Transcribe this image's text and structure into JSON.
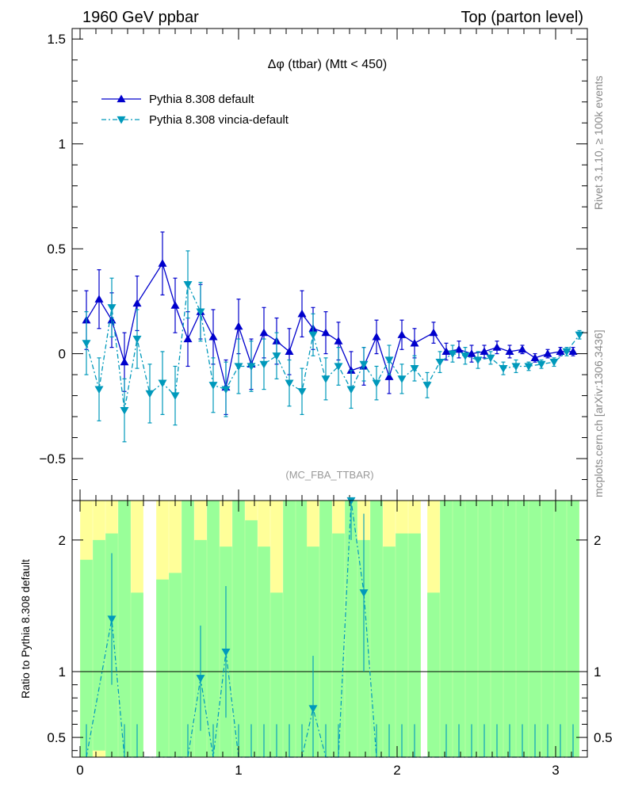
{
  "header": {
    "left": "1960 GeV ppbar",
    "right": "Top (parton level)"
  },
  "side_labels": {
    "rivet": "Rivet 3.1.10, ≥ 100k events",
    "mcplots": "mcplots.cern.ch [arXiv:1306.3436]"
  },
  "chart_data": [
    {
      "type": "line",
      "panel": "main",
      "title": "Δφ (ttbar) (Mtt < 450)",
      "watermark": "(MC_FBA_TTBAR)",
      "xlabel": "",
      "ylabel": "",
      "xlim": [
        -0.05,
        3.2
      ],
      "ylim": [
        -0.7,
        1.55
      ],
      "x_ticks": [
        "0",
        "1",
        "2",
        "3"
      ],
      "y_ticks": [
        "−0.5",
        "0",
        "0.5",
        "1",
        "1.5"
      ],
      "y_tick_values": [
        -0.5,
        0,
        0.5,
        1,
        1.5
      ],
      "legend_position": "top-left",
      "series": [
        {
          "name": "Pythia 8.308 default",
          "color": "#0000cc",
          "style": "solid",
          "marker": "triangle-up",
          "x": [
            0.04,
            0.12,
            0.2,
            0.28,
            0.36,
            0.52,
            0.6,
            0.68,
            0.76,
            0.84,
            0.92,
            1.0,
            1.08,
            1.16,
            1.24,
            1.32,
            1.4,
            1.47,
            1.55,
            1.63,
            1.71,
            1.79,
            1.87,
            1.95,
            2.03,
            2.11,
            2.23,
            2.31,
            2.39,
            2.47,
            2.55,
            2.63,
            2.71,
            2.79,
            2.87,
            2.95,
            3.03,
            3.11
          ],
          "y": [
            0.16,
            0.26,
            0.16,
            -0.04,
            0.24,
            0.43,
            0.23,
            0.07,
            0.2,
            0.08,
            -0.16,
            0.13,
            -0.05,
            0.1,
            0.06,
            0.01,
            0.19,
            0.12,
            0.1,
            0.06,
            -0.08,
            -0.06,
            0.08,
            -0.11,
            0.09,
            0.05,
            0.1,
            0.01,
            0.02,
            0.0,
            0.01,
            0.03,
            0.01,
            0.02,
            -0.02,
            0.0,
            0.01,
            0.01
          ],
          "err": [
            0.14,
            0.14,
            0.13,
            0.14,
            0.13,
            0.15,
            0.13,
            0.13,
            0.13,
            0.13,
            0.13,
            0.13,
            0.12,
            0.12,
            0.11,
            0.11,
            0.11,
            0.1,
            0.1,
            0.09,
            0.09,
            0.09,
            0.08,
            0.08,
            0.07,
            0.07,
            0.05,
            0.04,
            0.04,
            0.04,
            0.03,
            0.03,
            0.03,
            0.02,
            0.02,
            0.02,
            0.02,
            0.02
          ]
        },
        {
          "name": "Pythia 8.308 vincia-default",
          "color": "#0099bb",
          "style": "dashdot",
          "marker": "triangle-down",
          "x": [
            0.04,
            0.12,
            0.2,
            0.28,
            0.36,
            0.44,
            0.52,
            0.6,
            0.68,
            0.76,
            0.84,
            0.92,
            1.0,
            1.08,
            1.16,
            1.24,
            1.32,
            1.4,
            1.47,
            1.55,
            1.63,
            1.71,
            1.79,
            1.87,
            1.95,
            2.03,
            2.11,
            2.19,
            2.27,
            2.35,
            2.43,
            2.51,
            2.59,
            2.67,
            2.75,
            2.83,
            2.91,
            2.99,
            3.07,
            3.15
          ],
          "y": [
            0.05,
            -0.17,
            0.22,
            -0.27,
            0.07,
            -0.19,
            -0.14,
            -0.2,
            0.33,
            0.2,
            -0.15,
            -0.17,
            -0.06,
            -0.06,
            -0.05,
            -0.01,
            -0.14,
            -0.18,
            0.09,
            -0.12,
            -0.06,
            -0.17,
            -0.05,
            -0.14,
            -0.03,
            -0.12,
            -0.07,
            -0.15,
            -0.04,
            0.0,
            -0.01,
            -0.03,
            -0.02,
            -0.07,
            -0.06,
            -0.06,
            -0.05,
            -0.04,
            0.01,
            0.09
          ],
          "err": [
            0.15,
            0.15,
            0.14,
            0.15,
            0.14,
            0.14,
            0.15,
            0.14,
            0.16,
            0.14,
            0.13,
            0.13,
            0.13,
            0.12,
            0.12,
            0.11,
            0.11,
            0.11,
            0.1,
            0.1,
            0.09,
            0.09,
            0.08,
            0.08,
            0.07,
            0.07,
            0.06,
            0.06,
            0.05,
            0.04,
            0.04,
            0.04,
            0.03,
            0.03,
            0.03,
            0.02,
            0.02,
            0.02,
            0.02,
            0.02
          ]
        }
      ]
    },
    {
      "type": "line",
      "panel": "ratio",
      "ylabel": "Ratio to Pythia 8.308 default",
      "xlim": [
        -0.05,
        3.2
      ],
      "ylim": [
        0.35,
        2.3
      ],
      "x_ticks": [
        "0",
        "1",
        "2",
        "3"
      ],
      "y_ticks": [
        "0.5",
        "1",
        "2"
      ],
      "y_tick_values": [
        0.5,
        1,
        2
      ],
      "reference_line": 1,
      "bin_width": 0.0785,
      "bands": {
        "x": [
          0.04,
          0.12,
          0.2,
          0.28,
          0.36,
          0.52,
          0.6,
          0.68,
          0.76,
          0.84,
          0.92,
          1.0,
          1.08,
          1.16,
          1.24,
          1.32,
          1.4,
          1.47,
          1.55,
          1.63,
          1.71,
          1.79,
          1.87,
          1.95,
          2.03,
          2.11,
          2.23,
          2.31,
          2.39,
          2.47,
          2.55,
          2.63,
          2.71,
          2.79,
          2.87,
          2.95,
          3.03,
          3.11
        ],
        "green_lo": [
          0.35,
          0.4,
          0.35,
          0.35,
          0.35,
          0.35,
          0.35,
          0.35,
          0.35,
          0.35,
          0.35,
          0.35,
          0.35,
          0.35,
          0.35,
          0.35,
          0.35,
          0.35,
          0.35,
          0.35,
          0.35,
          0.35,
          0.35,
          0.35,
          0.35,
          0.35,
          0.35,
          0.35,
          0.35,
          0.35,
          0.35,
          0.35,
          0.35,
          0.35,
          0.35,
          0.35,
          0.35,
          0.35
        ],
        "green_hi": [
          1.85,
          2.0,
          2.05,
          2.3,
          1.6,
          1.7,
          1.75,
          2.3,
          2.0,
          2.3,
          1.95,
          2.3,
          2.15,
          1.95,
          1.6,
          2.3,
          2.3,
          1.95,
          2.3,
          2.05,
          2.3,
          2.0,
          2.3,
          1.95,
          2.05,
          2.05,
          1.6,
          2.3,
          2.3,
          2.3,
          2.3,
          2.3,
          2.3,
          2.3,
          2.3,
          2.3,
          2.3,
          2.3
        ],
        "yellow_lo": [
          0.35,
          0.35,
          0.35,
          0.35,
          0.35,
          0.35,
          0.35,
          0.35,
          0.35,
          0.35,
          0.35,
          0.35,
          0.35,
          0.35,
          0.35,
          0.35,
          0.35,
          0.35,
          0.35,
          0.35,
          0.35,
          0.35,
          0.35,
          0.35,
          0.35,
          0.35,
          0.35,
          0.35,
          0.35,
          0.35,
          0.35,
          0.35,
          0.35,
          0.35,
          0.35,
          0.35,
          0.35,
          0.35
        ],
        "yellow_hi": [
          2.3,
          2.3,
          2.3,
          2.3,
          2.3,
          2.3,
          2.3,
          2.3,
          2.3,
          2.3,
          2.3,
          2.3,
          2.3,
          2.3,
          2.3,
          2.3,
          2.3,
          2.3,
          2.3,
          2.3,
          2.3,
          2.3,
          2.3,
          2.3,
          2.3,
          2.3,
          2.3,
          2.3,
          2.3,
          2.3,
          2.3,
          2.3,
          2.3,
          2.3,
          2.3,
          2.3,
          2.3,
          2.3
        ]
      },
      "series": [
        {
          "name": "Pythia 8.308 vincia-default / default",
          "color": "#0099bb",
          "style": "dashdot",
          "marker": "triangle-down",
          "x": [
            0.04,
            0.2,
            0.28,
            0.36,
            0.68,
            0.76,
            0.84,
            0.92,
            1.0,
            1.08,
            1.16,
            1.24,
            1.32,
            1.4,
            1.47,
            1.55,
            1.63,
            1.71,
            1.79,
            1.87,
            1.95,
            2.03,
            2.11,
            2.31,
            2.39,
            2.47,
            2.55,
            2.63,
            2.71,
            2.79,
            2.87,
            2.95,
            3.03,
            3.11
          ],
          "y": [
            0.3,
            1.4,
            0.3,
            0.3,
            0.3,
            0.95,
            0.3,
            1.15,
            0.3,
            0.3,
            0.3,
            0.3,
            0.3,
            0.3,
            0.72,
            0.3,
            0.3,
            2.3,
            1.6,
            0.3,
            0.3,
            0.3,
            0.3,
            0.3,
            0.3,
            0.3,
            0.3,
            0.3,
            0.3,
            0.3,
            0.3,
            0.3,
            0.3,
            0.3
          ],
          "err": [
            0.3,
            0.5,
            0.3,
            0.3,
            0.3,
            0.4,
            0.3,
            0.5,
            0.3,
            0.3,
            0.3,
            0.3,
            0.3,
            0.3,
            0.4,
            0.3,
            0.3,
            0.3,
            0.6,
            0.3,
            0.3,
            0.3,
            0.3,
            0.3,
            0.3,
            0.3,
            0.3,
            0.3,
            0.3,
            0.3,
            0.3,
            0.3,
            0.3,
            0.3
          ]
        }
      ]
    }
  ]
}
